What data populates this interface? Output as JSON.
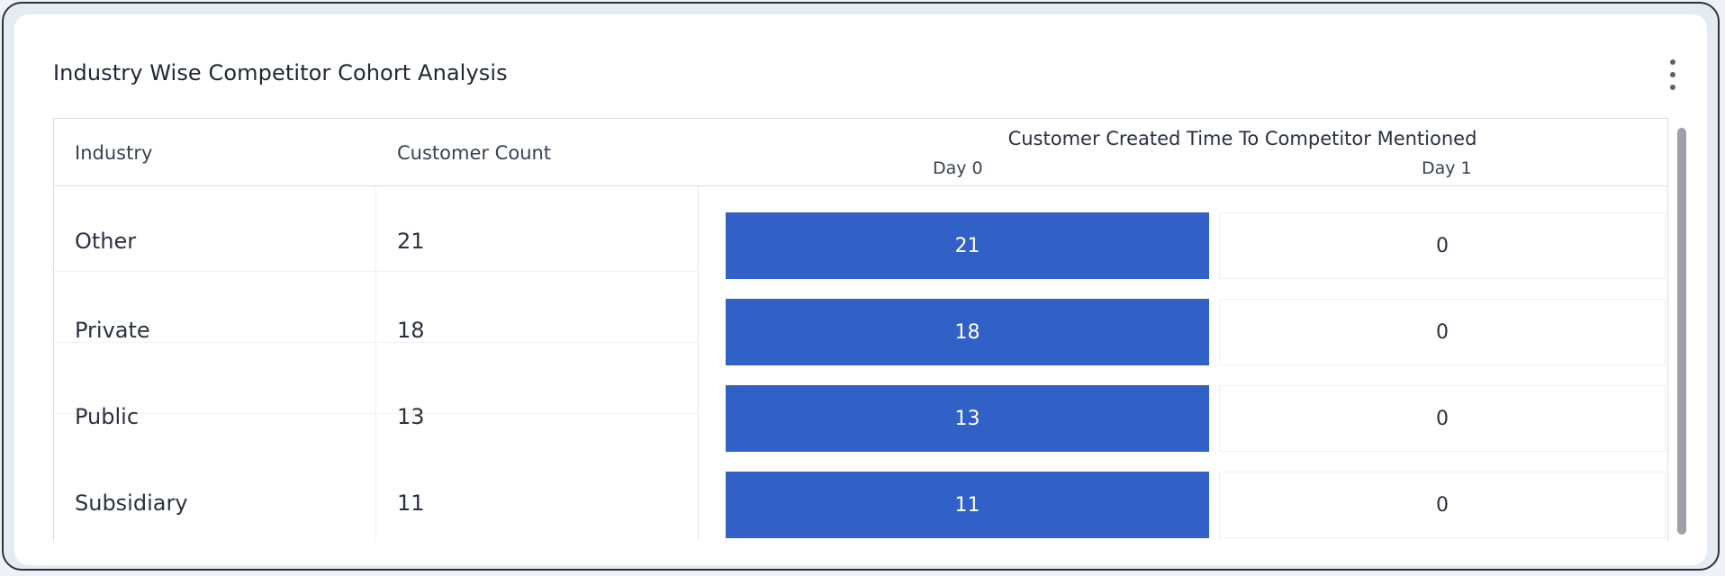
{
  "card": {
    "title": "Industry Wise Competitor Cohort Analysis",
    "menu_icon": "more-vertical-icon"
  },
  "table": {
    "headers": {
      "industry": "Industry",
      "customer_count": "Customer Count",
      "cohort_group": "Customer Created Time To Competitor Mentioned",
      "day0": "Day 0",
      "day1": "Day 1"
    },
    "rows": [
      {
        "industry": "Other",
        "count": "21",
        "day0": "21",
        "day1": "0"
      },
      {
        "industry": "Private",
        "count": "18",
        "day0": "18",
        "day1": "0"
      },
      {
        "industry": "Public",
        "count": "13",
        "day0": "13",
        "day1": "0"
      },
      {
        "industry": "Subsidiary",
        "count": "11",
        "day0": "11",
        "day1": "0"
      }
    ]
  },
  "colors": {
    "cohort_fill": "#3160c7",
    "border": "#d8dde5"
  }
}
